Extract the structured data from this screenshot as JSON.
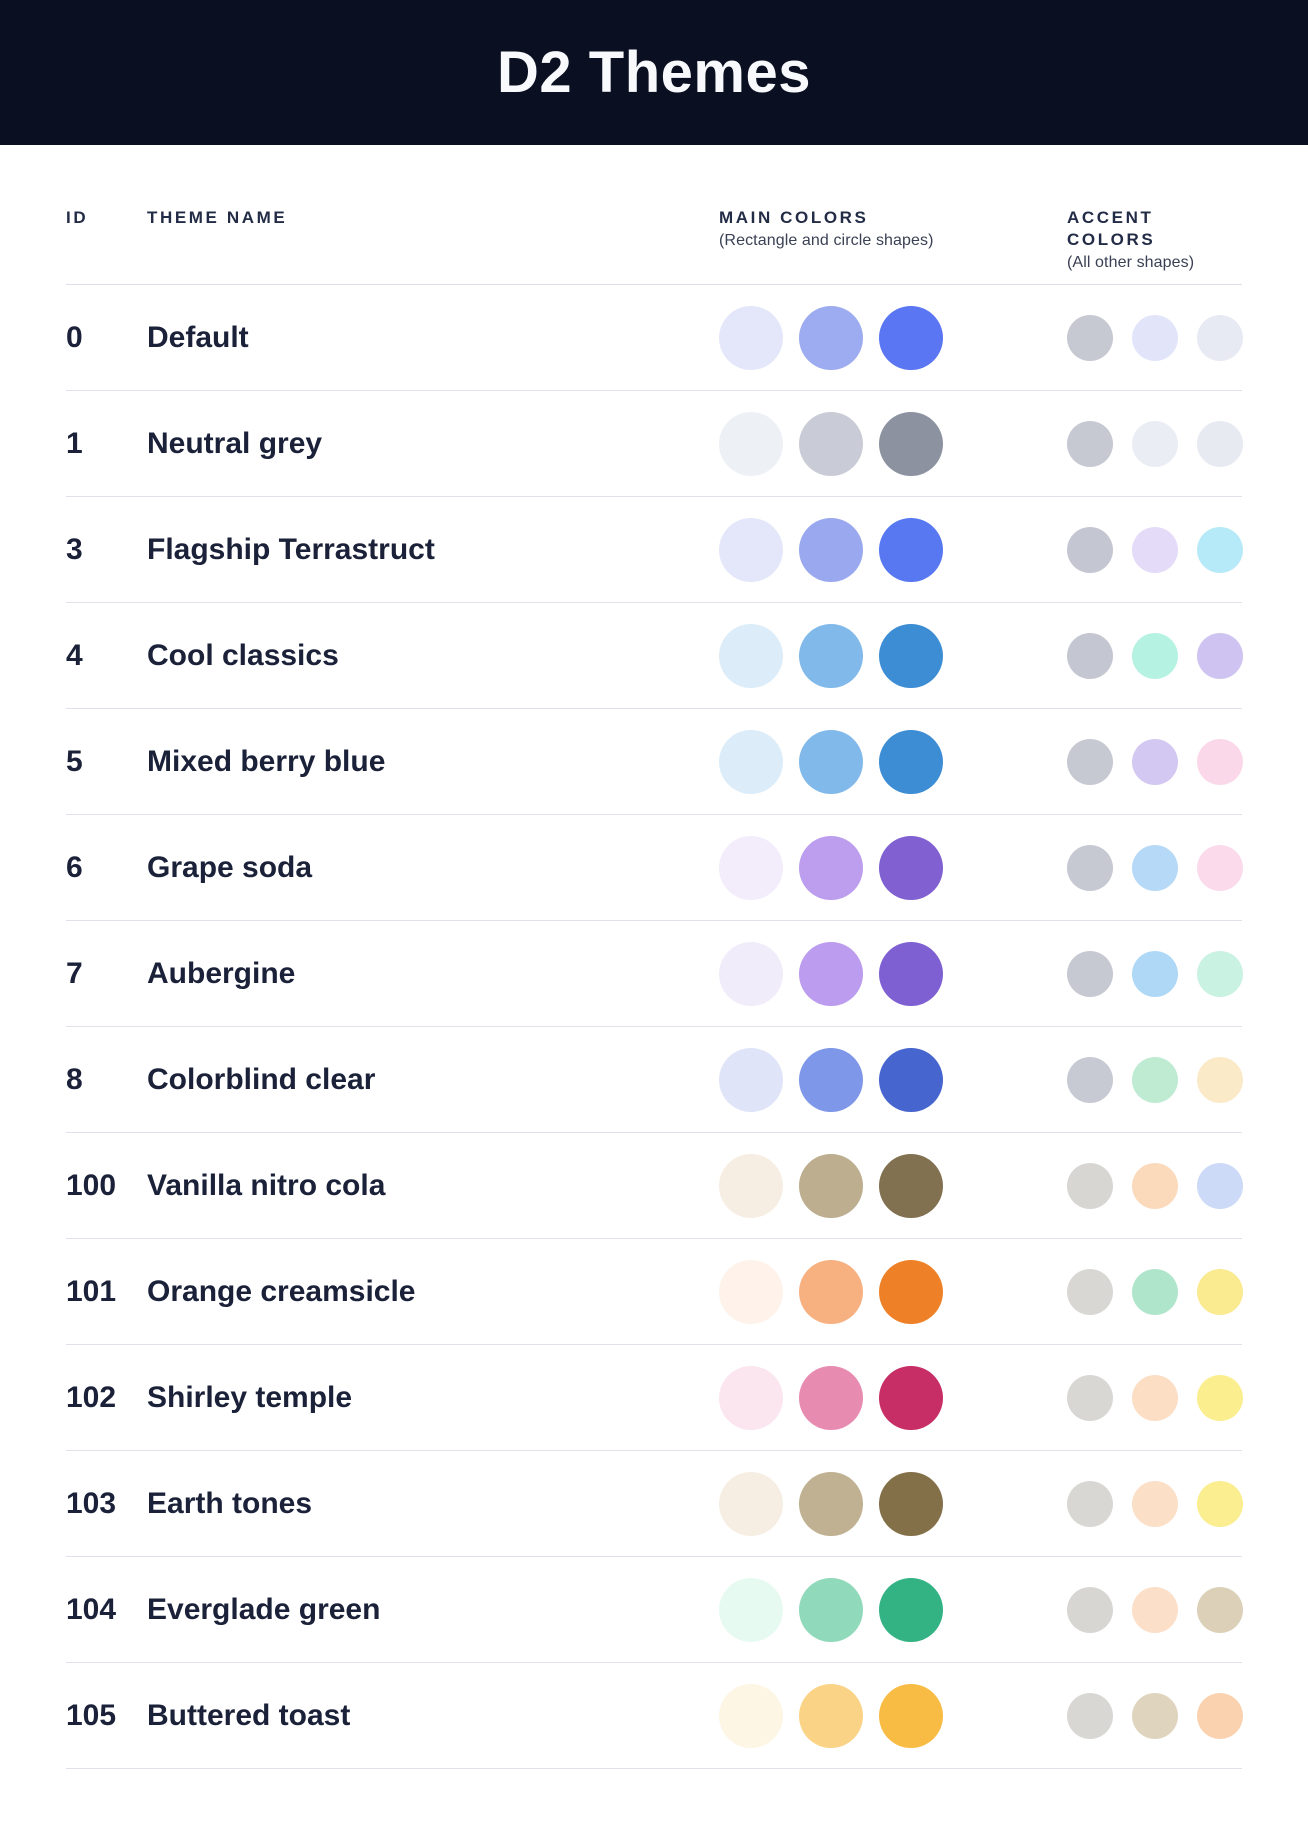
{
  "header": {
    "title": "D2 Themes"
  },
  "table": {
    "columns": {
      "id_label": "ID",
      "name_label": "THEME NAME",
      "main_label": "MAIN COLORS",
      "main_sublabel": "(Rectangle and circle shapes)",
      "accent_label": "ACCENT COLORS",
      "accent_sublabel": "(All other shapes)"
    },
    "rows": [
      {
        "id": "0",
        "name": "Default",
        "main_colors": [
          "#E4E7F9",
          "#9DACF0",
          "#5B76F2"
        ],
        "accent_colors": [
          "#C6C8D2",
          "#E2E5FA",
          "#E8EAF3"
        ]
      },
      {
        "id": "1",
        "name": "Neutral grey",
        "main_colors": [
          "#EDF0F5",
          "#C9CCD6",
          "#8D92A1"
        ],
        "accent_colors": [
          "#C6C8D2",
          "#EBEDF4",
          "#E8EAF1"
        ]
      },
      {
        "id": "3",
        "name": "Flagship Terrastruct",
        "main_colors": [
          "#E4E7FA",
          "#9AA9EF",
          "#5878F1"
        ],
        "accent_colors": [
          "#C4C6D1",
          "#E4DBF8",
          "#B7EAF8"
        ]
      },
      {
        "id": "4",
        "name": "Cool classics",
        "main_colors": [
          "#DCEDF9",
          "#81BAEA",
          "#3D8DD5"
        ],
        "accent_colors": [
          "#C4C6D1",
          "#B6F2E2",
          "#CFC4F1"
        ]
      },
      {
        "id": "5",
        "name": "Mixed berry blue",
        "main_colors": [
          "#DCEDF9",
          "#81BAEA",
          "#3D8DD5"
        ],
        "accent_colors": [
          "#C6C8D2",
          "#D3C8F1",
          "#FBD8E9"
        ]
      },
      {
        "id": "6",
        "name": "Grape soda",
        "main_colors": [
          "#F2ECFB",
          "#BC9DEE",
          "#8160D1"
        ],
        "accent_colors": [
          "#C6C8D2",
          "#B6D9F7",
          "#FBDAEB"
        ]
      },
      {
        "id": "7",
        "name": "Aubergine",
        "main_colors": [
          "#F1ECFA",
          "#BB9CEE",
          "#7F60D3"
        ],
        "accent_colors": [
          "#C6C8D2",
          "#AED8F6",
          "#C9F2E2"
        ]
      },
      {
        "id": "8",
        "name": "Colorblind clear",
        "main_colors": [
          "#DFE4F8",
          "#7E97E8",
          "#4765CE"
        ],
        "accent_colors": [
          "#C7C9D3",
          "#BFEBD3",
          "#FBEAC8"
        ]
      },
      {
        "id": "100",
        "name": "Vanilla nitro cola",
        "main_colors": [
          "#F7EEE3",
          "#BCAE8E",
          "#827150"
        ],
        "accent_colors": [
          "#D7D6D2",
          "#FBDABC",
          "#CCD9F7"
        ]
      },
      {
        "id": "101",
        "name": "Orange creamsicle",
        "main_colors": [
          "#FEF2EA",
          "#F7B181",
          "#EE8127"
        ],
        "accent_colors": [
          "#D8D7D3",
          "#AFE5CB",
          "#FAEB90"
        ]
      },
      {
        "id": "102",
        "name": "Shirley temple",
        "main_colors": [
          "#FBE5EF",
          "#E88BB1",
          "#C62E65"
        ],
        "accent_colors": [
          "#D8D7D3",
          "#FCDEC5",
          "#FAEE8E"
        ]
      },
      {
        "id": "103",
        "name": "Earth tones",
        "main_colors": [
          "#F6EEE3",
          "#BFB191",
          "#837049"
        ],
        "accent_colors": [
          "#D8D7D3",
          "#FCDFC7",
          "#FAEE90"
        ]
      },
      {
        "id": "104",
        "name": "Everglade green",
        "main_colors": [
          "#E7FAF2",
          "#90D9BA",
          "#33B384"
        ],
        "accent_colors": [
          "#D7D6D2",
          "#FCDFC9",
          "#DCD0B9"
        ]
      },
      {
        "id": "105",
        "name": "Buttered toast",
        "main_colors": [
          "#FDF6E4",
          "#FBD387",
          "#F8BC45"
        ],
        "accent_colors": [
          "#D8D7D3",
          "#DFD4BE",
          "#FAD2B0"
        ]
      }
    ]
  },
  "colors": {
    "header_bg": "#0A1022",
    "title_text": "#F8F9FC",
    "row_divider": "#DFE2EC",
    "heading_text": "#232C47",
    "body_text": "#1A2138"
  }
}
